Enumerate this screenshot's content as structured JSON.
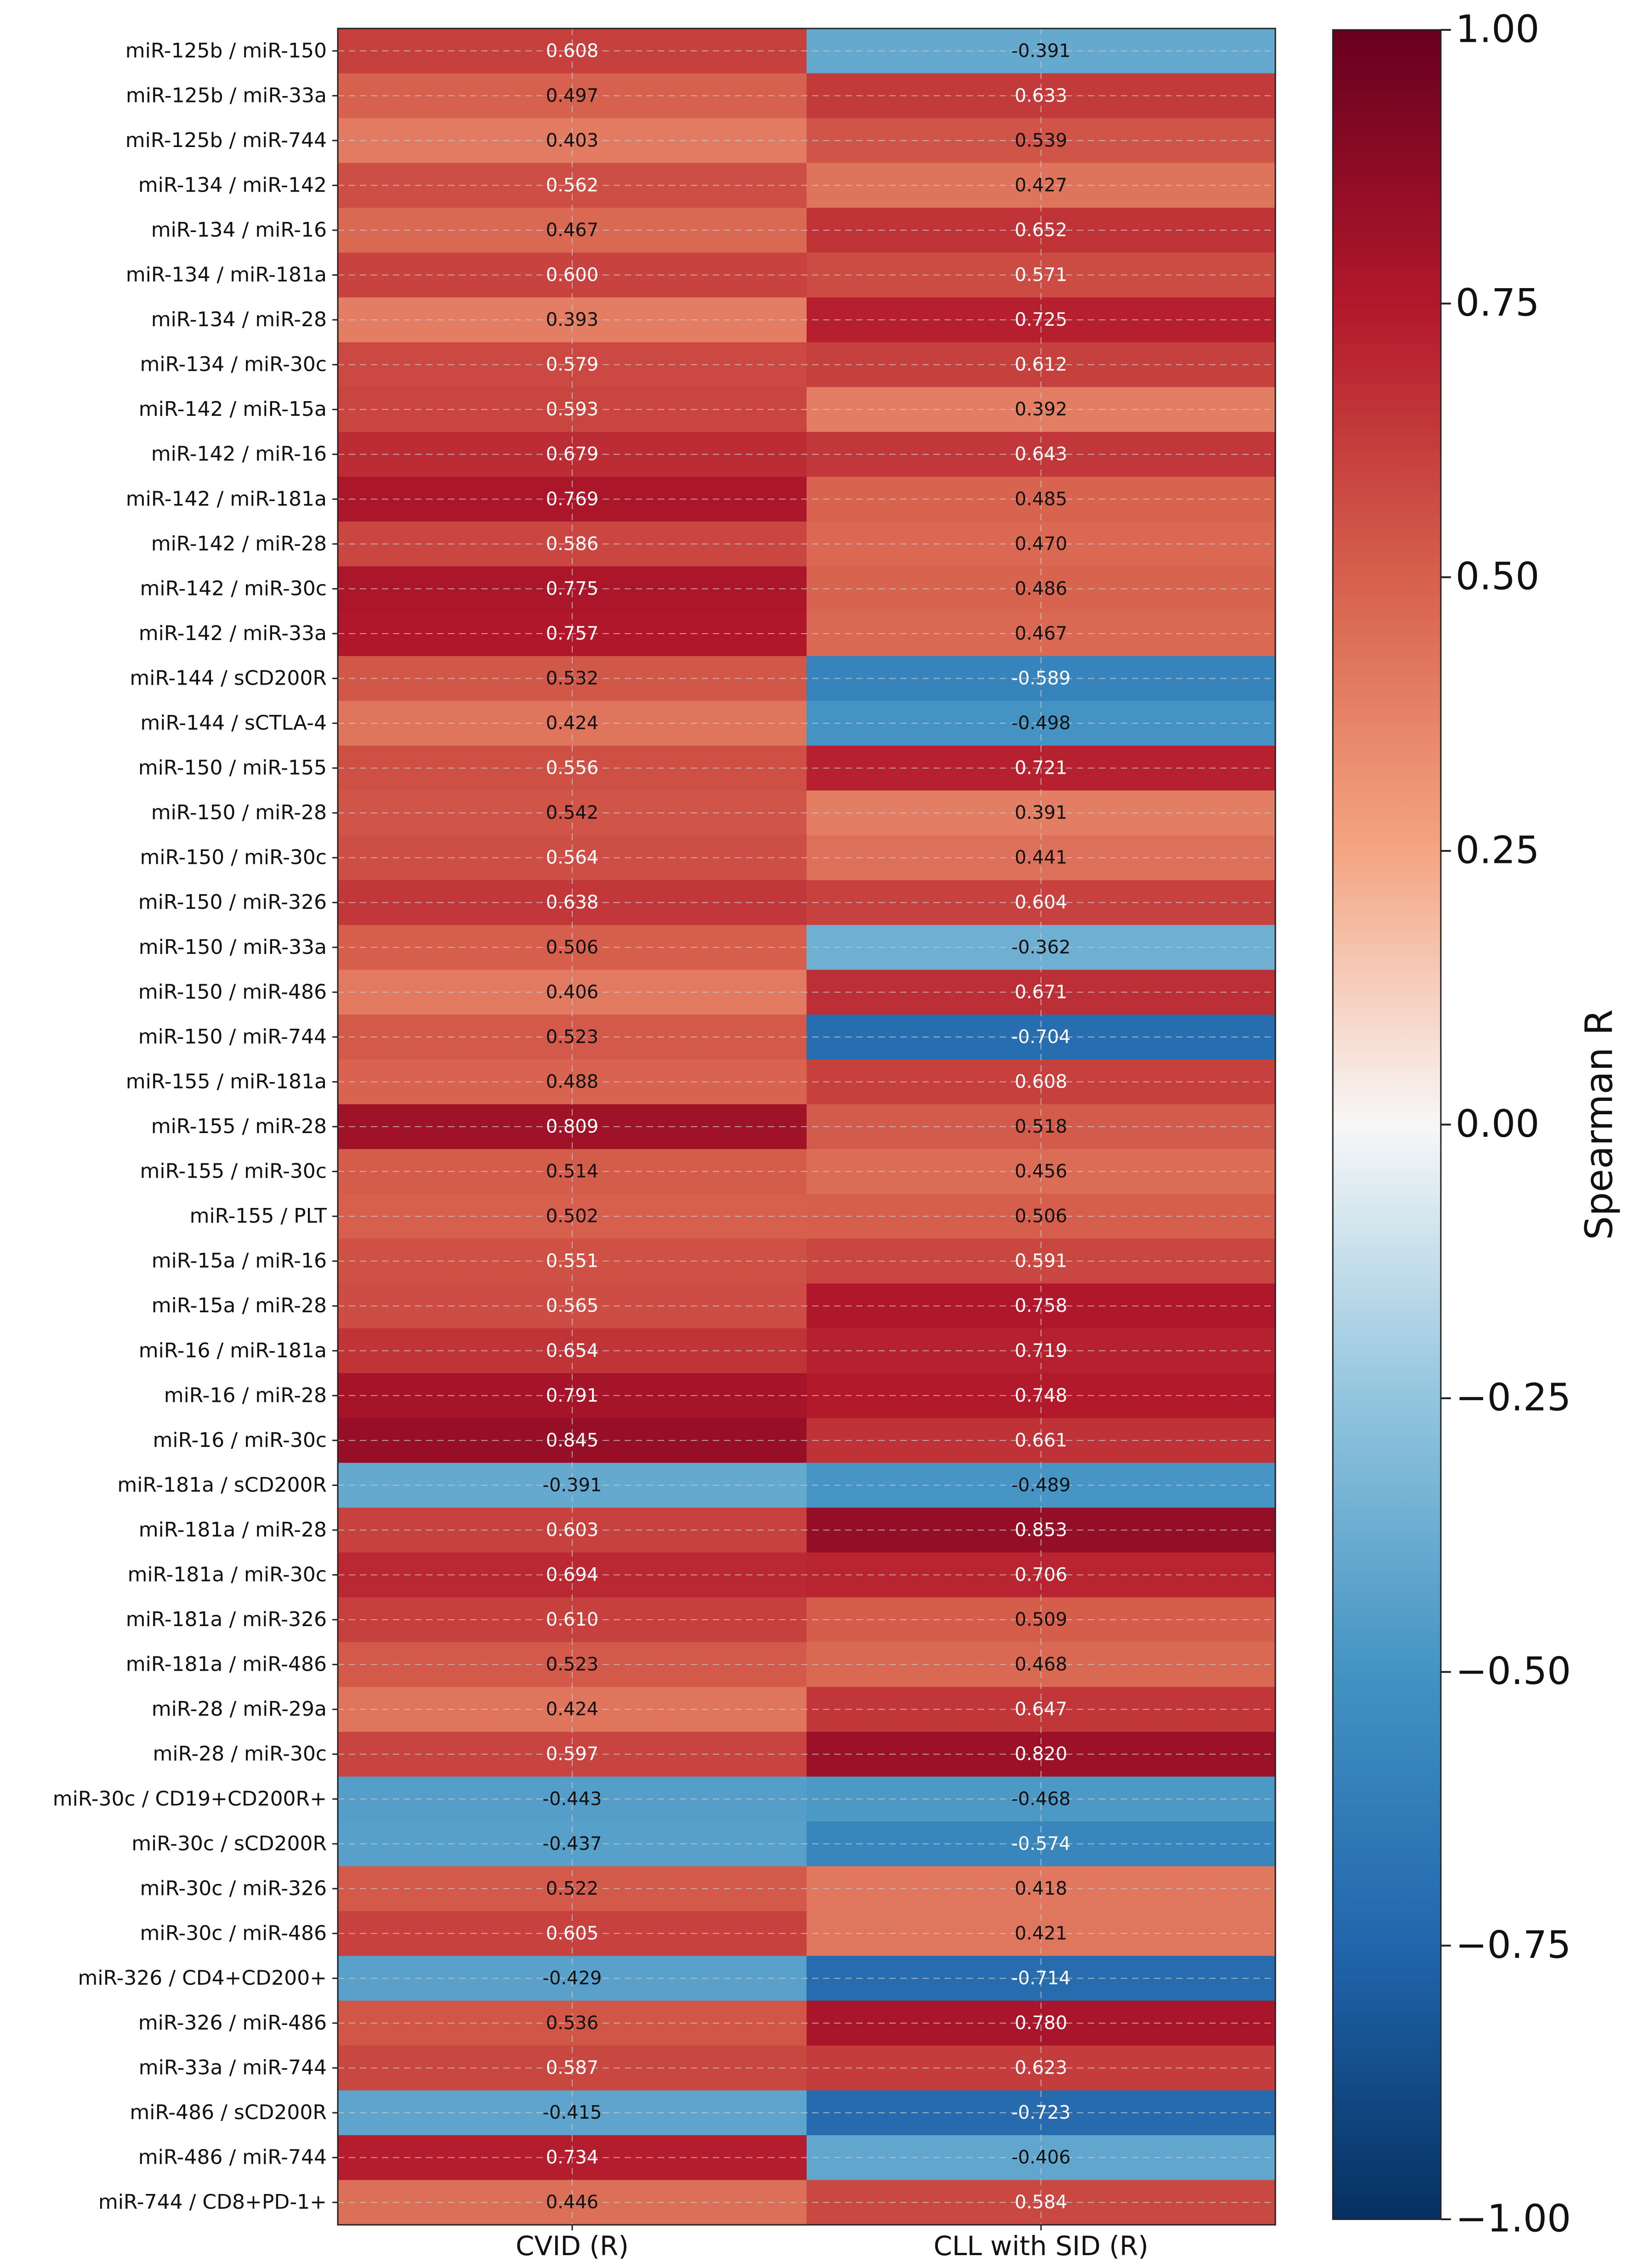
{
  "chart_data": {
    "type": "heatmap",
    "title": "",
    "xlabel": "",
    "ylabel": "",
    "columns": [
      "CVID (R)",
      "CLL with SID (R)"
    ],
    "rows": [
      "miR-125b / miR-150",
      "miR-125b / miR-33a",
      "miR-125b / miR-744",
      "miR-134 / miR-142",
      "miR-134 / miR-16",
      "miR-134 / miR-181a",
      "miR-134 / miR-28",
      "miR-134 / miR-30c",
      "miR-142 / miR-15a",
      "miR-142 / miR-16",
      "miR-142 / miR-181a",
      "miR-142 / miR-28",
      "miR-142 / miR-30c",
      "miR-142 / miR-33a",
      "miR-144 / sCD200R",
      "miR-144 / sCTLA-4",
      "miR-150 / miR-155",
      "miR-150 / miR-28",
      "miR-150 / miR-30c",
      "miR-150 / miR-326",
      "miR-150 / miR-33a",
      "miR-150 / miR-486",
      "miR-150 / miR-744",
      "miR-155 / miR-181a",
      "miR-155 / miR-28",
      "miR-155 / miR-30c",
      "miR-155 / PLT",
      "miR-15a / miR-16",
      "miR-15a / miR-28",
      "miR-16 / miR-181a",
      "miR-16 / miR-28",
      "miR-16 / miR-30c",
      "miR-181a / sCD200R",
      "miR-181a / miR-28",
      "miR-181a / miR-30c",
      "miR-181a / miR-326",
      "miR-181a / miR-486",
      "miR-28 / miR-29a",
      "miR-28 / miR-30c",
      "miR-30c / CD19+CD200R+",
      "miR-30c / sCD200R",
      "miR-30c / miR-326",
      "miR-30c / miR-486",
      "miR-326 / CD4+CD200+",
      "miR-326 / miR-486",
      "miR-33a / miR-744",
      "miR-486 / sCD200R",
      "miR-486 / miR-744",
      "miR-744 / CD8+PD-1+"
    ],
    "values": [
      [
        0.608,
        -0.391
      ],
      [
        0.497,
        0.633
      ],
      [
        0.403,
        0.539
      ],
      [
        0.562,
        0.427
      ],
      [
        0.467,
        0.652
      ],
      [
        0.6,
        0.571
      ],
      [
        0.393,
        0.725
      ],
      [
        0.579,
        0.612
      ],
      [
        0.593,
        0.392
      ],
      [
        0.679,
        0.643
      ],
      [
        0.769,
        0.485
      ],
      [
        0.586,
        0.47
      ],
      [
        0.775,
        0.486
      ],
      [
        0.757,
        0.467
      ],
      [
        0.532,
        -0.589
      ],
      [
        0.424,
        -0.498
      ],
      [
        0.556,
        0.721
      ],
      [
        0.542,
        0.391
      ],
      [
        0.564,
        0.441
      ],
      [
        0.638,
        0.604
      ],
      [
        0.506,
        -0.362
      ],
      [
        0.406,
        0.671
      ],
      [
        0.523,
        -0.704
      ],
      [
        0.488,
        0.608
      ],
      [
        0.809,
        0.518
      ],
      [
        0.514,
        0.456
      ],
      [
        0.502,
        0.506
      ],
      [
        0.551,
        0.591
      ],
      [
        0.565,
        0.758
      ],
      [
        0.654,
        0.719
      ],
      [
        0.791,
        0.748
      ],
      [
        0.845,
        0.661
      ],
      [
        -0.391,
        -0.489
      ],
      [
        0.603,
        0.853
      ],
      [
        0.694,
        0.706
      ],
      [
        0.61,
        0.509
      ],
      [
        0.523,
        0.468
      ],
      [
        0.424,
        0.647
      ],
      [
        0.597,
        0.82
      ],
      [
        -0.443,
        -0.468
      ],
      [
        -0.437,
        -0.574
      ],
      [
        0.522,
        0.418
      ],
      [
        0.605,
        0.421
      ],
      [
        -0.429,
        -0.714
      ],
      [
        0.536,
        0.78
      ],
      [
        0.587,
        0.623
      ],
      [
        -0.415,
        -0.723
      ],
      [
        0.734,
        -0.406
      ],
      [
        0.446,
        0.584
      ]
    ],
    "value_labels": [
      [
        "0.608",
        "-0.391"
      ],
      [
        "0.497",
        "0.633"
      ],
      [
        "0.403",
        "0.539"
      ],
      [
        "0.562",
        "0.427"
      ],
      [
        "0.467",
        "0.652"
      ],
      [
        "0.600",
        "0.571"
      ],
      [
        "0.393",
        "0.725"
      ],
      [
        "0.579",
        "0.612"
      ],
      [
        "0.593",
        "0.392"
      ],
      [
        "0.679",
        "0.643"
      ],
      [
        "0.769",
        "0.485"
      ],
      [
        "0.586",
        "0.470"
      ],
      [
        "0.775",
        "0.486"
      ],
      [
        "0.757",
        "0.467"
      ],
      [
        "0.532",
        "-0.589"
      ],
      [
        "0.424",
        "-0.498"
      ],
      [
        "0.556",
        "0.721"
      ],
      [
        "0.542",
        "0.391"
      ],
      [
        "0.564",
        "0.441"
      ],
      [
        "0.638",
        "0.604"
      ],
      [
        "0.506",
        "-0.362"
      ],
      [
        "0.406",
        "0.671"
      ],
      [
        "0.523",
        "-0.704"
      ],
      [
        "0.488",
        "0.608"
      ],
      [
        "0.809",
        "0.518"
      ],
      [
        "0.514",
        "0.456"
      ],
      [
        "0.502",
        "0.506"
      ],
      [
        "0.551",
        "0.591"
      ],
      [
        "0.565",
        "0.758"
      ],
      [
        "0.654",
        "0.719"
      ],
      [
        "0.791",
        "0.748"
      ],
      [
        "0.845",
        "0.661"
      ],
      [
        "-0.391",
        "-0.489"
      ],
      [
        "0.603",
        "0.853"
      ],
      [
        "0.694",
        "0.706"
      ],
      [
        "0.610",
        "0.509"
      ],
      [
        "0.523",
        "0.468"
      ],
      [
        "0.424",
        "0.647"
      ],
      [
        "0.597",
        "0.820"
      ],
      [
        "-0.443",
        "-0.468"
      ],
      [
        "-0.437",
        "-0.574"
      ],
      [
        "0.522",
        "0.418"
      ],
      [
        "0.605",
        "0.421"
      ],
      [
        "-0.429",
        "-0.714"
      ],
      [
        "0.536",
        "0.780"
      ],
      [
        "0.587",
        "0.623"
      ],
      [
        "-0.415",
        "-0.723"
      ],
      [
        "0.734",
        "-0.406"
      ],
      [
        "0.446",
        "0.584"
      ]
    ],
    "colorbar": {
      "label": "Spearman R",
      "range": [
        -1,
        1
      ],
      "ticks": [
        1,
        0.75,
        0.5,
        0.25,
        0,
        -0.25,
        -0.5,
        -0.75,
        -1
      ],
      "tick_labels": [
        "1.00",
        "0.75",
        "0.50",
        "0.25",
        "0.00",
        "−0.25",
        "−0.50",
        "−0.75",
        "−1.00"
      ],
      "colormap": "RdBu_r",
      "stops": [
        {
          "value": -1.0,
          "color": "#053061"
        },
        {
          "value": -0.75,
          "color": "#2166ac"
        },
        {
          "value": -0.5,
          "color": "#4393c3"
        },
        {
          "value": -0.25,
          "color": "#92c5de"
        },
        {
          "value": 0.0,
          "color": "#f7f7f7"
        },
        {
          "value": 0.25,
          "color": "#f4a582"
        },
        {
          "value": 0.5,
          "color": "#d6604d"
        },
        {
          "value": 0.75,
          "color": "#b2182b"
        },
        {
          "value": 1.0,
          "color": "#67001f"
        }
      ]
    },
    "grid": true,
    "gridlines": "dashed"
  }
}
